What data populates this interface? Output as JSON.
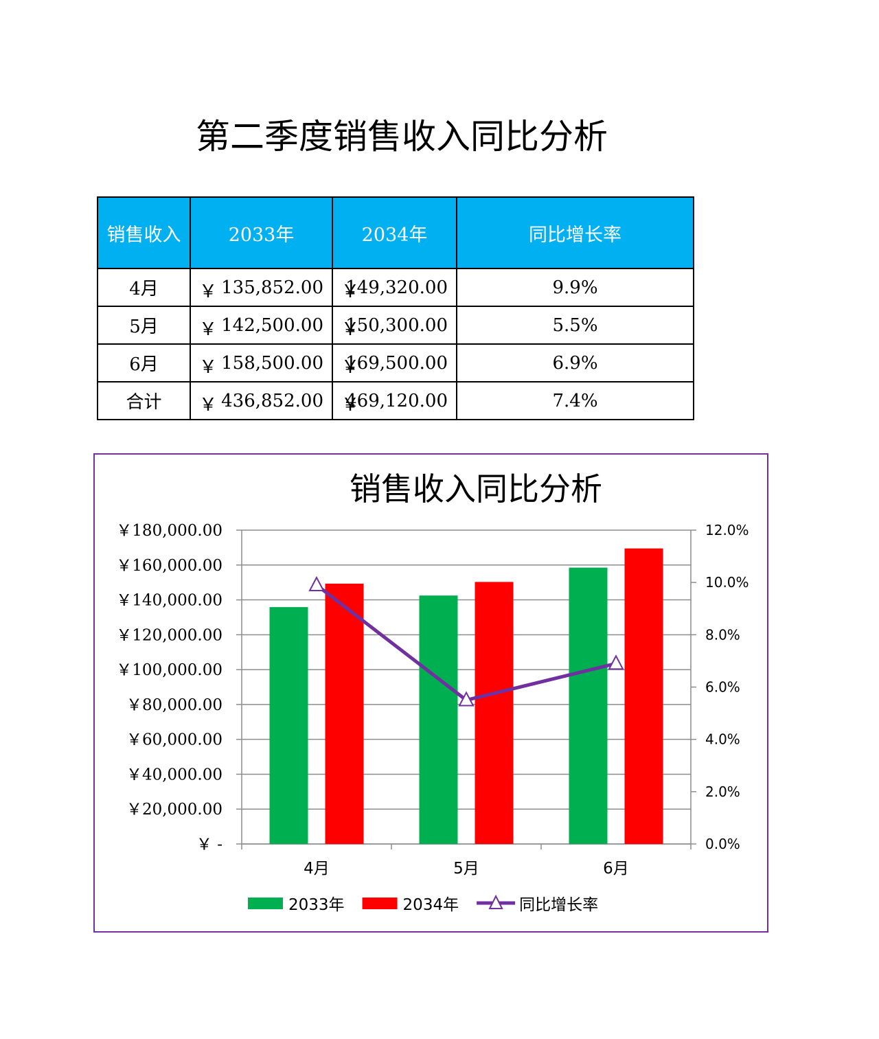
{
  "page_title": "第二季度销售收入同比分析",
  "table": {
    "headers": [
      "销售收入",
      "2033年",
      "2034年",
      "同比增长率"
    ],
    "currency": "￥",
    "rows": [
      {
        "label": "4月",
        "y2033": "135,852.00",
        "y2034": "149,320.00",
        "rate": "9.9%"
      },
      {
        "label": "5月",
        "y2033": "142,500.00",
        "y2034": "150,300.00",
        "rate": "5.5%"
      },
      {
        "label": "6月",
        "y2033": "158,500.00",
        "y2034": "169,500.00",
        "rate": "6.9%"
      },
      {
        "label": "合计",
        "y2033": "436,852.00",
        "y2034": "469,120.00",
        "rate": "7.4%"
      }
    ]
  },
  "chart_data": {
    "type": "bar",
    "title": "销售收入同比分析",
    "categories": [
      "4月",
      "5月",
      "6月"
    ],
    "series": [
      {
        "name": "2033年",
        "type": "bar",
        "axis": "left",
        "color": "#00b050",
        "values": [
          135852,
          142500,
          158500
        ]
      },
      {
        "name": "2034年",
        "type": "bar",
        "axis": "left",
        "color": "#ff0000",
        "values": [
          149320,
          150300,
          169500
        ]
      },
      {
        "name": "同比增长率",
        "type": "line",
        "axis": "right",
        "color": "#7030a0",
        "marker": "triangle",
        "values": [
          9.9,
          5.5,
          6.9
        ]
      }
    ],
    "y_left": {
      "ylim": [
        0,
        180000
      ],
      "ticks": [
        0,
        20000,
        40000,
        60000,
        80000,
        100000,
        120000,
        140000,
        160000,
        180000
      ],
      "tick_labels": [
        "￥ -",
        "￥20,000.00",
        "￥40,000.00",
        "￥60,000.00",
        "￥80,000.00",
        "￥100,000.00",
        "￥120,000.00",
        "￥140,000.00",
        "￥160,000.00",
        "￥180,000.00"
      ]
    },
    "y_right": {
      "ylim": [
        0,
        12
      ],
      "ticks": [
        0,
        2,
        4,
        6,
        8,
        10,
        12
      ],
      "tick_labels": [
        "0.0%",
        "2.0%",
        "4.0%",
        "6.0%",
        "8.0%",
        "10.0%",
        "12.0%"
      ]
    },
    "grid": true,
    "legend_position": "bottom"
  }
}
